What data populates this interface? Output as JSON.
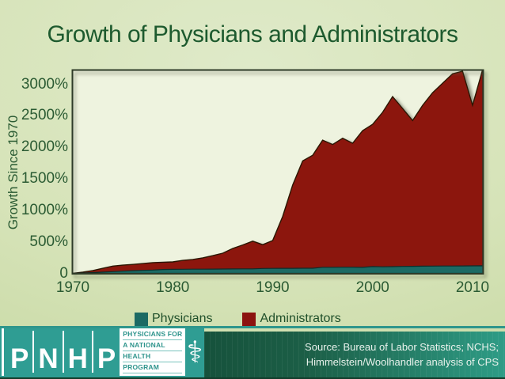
{
  "slide": {
    "title": "Growth of Physicians and Administrators"
  },
  "chart_data": {
    "type": "area",
    "title": "Growth of Physicians and Administrators",
    "xlabel": "",
    "ylabel": "Growth Since 1970",
    "grid": false,
    "legend_position": "bottom",
    "x_range": [
      1970,
      2011
    ],
    "y_range": [
      0,
      3225
    ],
    "y_ticks": [
      {
        "value": 3000,
        "label": "3000%"
      },
      {
        "value": 2500,
        "label": "2500%"
      },
      {
        "value": 2000,
        "label": "2000%"
      },
      {
        "value": 1500,
        "label": "1500%"
      },
      {
        "value": 1000,
        "label": "1000%"
      },
      {
        "value": 500,
        "label": "500%"
      },
      {
        "value": 0,
        "label": "0"
      }
    ],
    "x_ticks": [
      {
        "value": 1970,
        "label": "1970"
      },
      {
        "value": 1980,
        "label": "1980"
      },
      {
        "value": 1990,
        "label": "1990"
      },
      {
        "value": 2000,
        "label": "2000"
      },
      {
        "value": 2010,
        "label": "2010"
      }
    ],
    "years": [
      1970,
      1971,
      1972,
      1973,
      1974,
      1975,
      1976,
      1977,
      1978,
      1979,
      1980,
      1981,
      1982,
      1983,
      1984,
      1985,
      1986,
      1987,
      1988,
      1989,
      1990,
      1991,
      1992,
      1993,
      1994,
      1995,
      1996,
      1997,
      1998,
      1999,
      2000,
      2001,
      2002,
      2003,
      2004,
      2005,
      2006,
      2007,
      2008,
      2009,
      2010,
      2011
    ],
    "series": [
      {
        "name": "Administrators",
        "color": "#8c1310",
        "edge_color": "#2b1805",
        "values": [
          0,
          20,
          45,
          80,
          115,
          130,
          142,
          155,
          170,
          176,
          182,
          205,
          220,
          245,
          280,
          320,
          395,
          450,
          510,
          455,
          520,
          900,
          1400,
          1780,
          1870,
          2110,
          2040,
          2140,
          2060,
          2260,
          2360,
          2550,
          2800,
          2610,
          2420,
          2660,
          2860,
          3010,
          3160,
          3200,
          2660,
          3220
        ]
      },
      {
        "name": "Physicians",
        "color": "#1c6a64",
        "edge_color": "#0f2d2a",
        "values": [
          0,
          5,
          12,
          20,
          28,
          35,
          42,
          48,
          52,
          62,
          64,
          65,
          66,
          67,
          68,
          69,
          70,
          71,
          72,
          78,
          79,
          80,
          80,
          81,
          82,
          97,
          97,
          98,
          98,
          95,
          108,
          104,
          106,
          110,
          112,
          114,
          115,
          116,
          117,
          118,
          119,
          120
        ]
      }
    ]
  },
  "legend": {
    "items": [
      {
        "label": "Physicians",
        "color": "#1c6a64"
      },
      {
        "label": "Administrators",
        "color": "#8c1310"
      }
    ]
  },
  "footer": {
    "logo_letters": [
      "P",
      "N",
      "H",
      "P"
    ],
    "logo_text_lines": [
      "PHYSICIANS FOR",
      "A NATIONAL",
      "HEALTH",
      "PROGRAM"
    ],
    "caduceus_icon": "⚕",
    "source_lines": [
      "Source: Bureau of Labor Statistics; NCHS;",
      "Himmelstein/Woolhandler analysis of CPS"
    ]
  },
  "colors": {
    "title_text": "#1d5a2e",
    "axis_text": "#2b5b33",
    "plot_background": "#eef3df",
    "plot_frame": "#2e3b28",
    "slide_background": "#d6e3b8",
    "footer_teal": "#2f9d93",
    "footer_gradient_left": "#16523c",
    "footer_gradient_right": "#2e9c86",
    "source_text": "#e9f2ec"
  }
}
